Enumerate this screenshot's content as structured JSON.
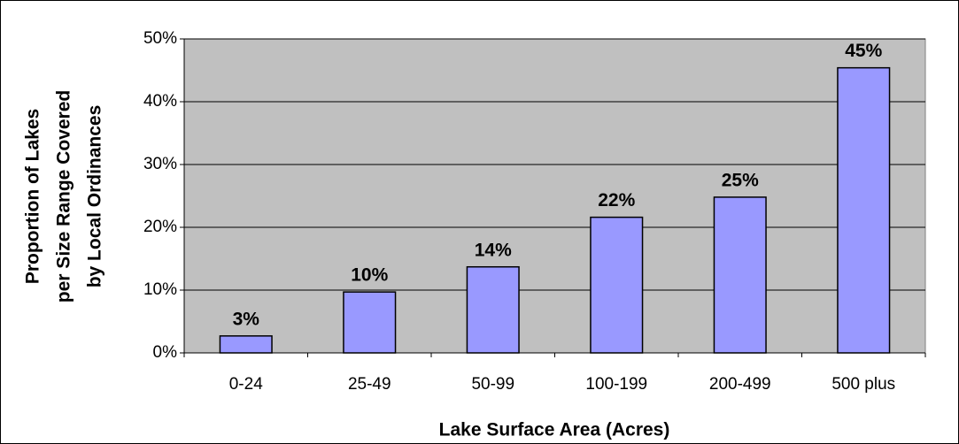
{
  "chart_data": {
    "type": "bar",
    "xlabel": "Lake Surface Area (Acres)",
    "ylabel": [
      "Proportion of Lakes",
      "per Size Range Covered",
      "by Local Ordinances"
    ],
    "categories": [
      "0-24",
      "25-49",
      "50-99",
      "100-199",
      "200-499",
      "500 plus"
    ],
    "values": [
      2.7,
      9.7,
      13.7,
      21.6,
      24.8,
      45.4
    ],
    "value_labels": [
      "3%",
      "10%",
      "14%",
      "22%",
      "25%",
      "45%"
    ],
    "color": "#9999ff",
    "ylim": [
      0,
      50
    ],
    "yticks": [
      {
        "value": 0,
        "label": "0%"
      },
      {
        "value": 10,
        "label": "10%"
      },
      {
        "value": 20,
        "label": "20%"
      },
      {
        "value": 30,
        "label": "30%"
      },
      {
        "value": 40,
        "label": "40%"
      },
      {
        "value": 50,
        "label": "50%"
      }
    ],
    "grid": true
  }
}
